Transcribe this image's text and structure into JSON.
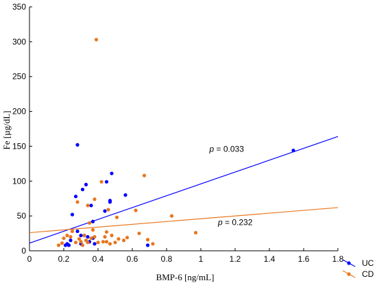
{
  "chart_data": {
    "type": "scatter",
    "title": "",
    "xlabel": "BMP-6 [ng/mL]",
    "ylabel": "Fe [µg/dL]",
    "xlim": [
      0,
      1.8
    ],
    "ylim": [
      0,
      350
    ],
    "x_ticks": [
      "0",
      "0.2",
      "0.4",
      "0.6",
      "0.8",
      "1",
      "1.2",
      "1.4",
      "1.6",
      "1.8"
    ],
    "y_ticks": [
      "0",
      "50",
      "100",
      "150",
      "200",
      "250",
      "300",
      "350"
    ],
    "grid": false,
    "legend_position": "bottom-right",
    "series": [
      {
        "name": "UC",
        "color": "#0000ff",
        "points": [
          [
            0.21,
            8
          ],
          [
            0.22,
            10
          ],
          [
            0.23,
            8
          ],
          [
            0.24,
            15
          ],
          [
            0.25,
            52
          ],
          [
            0.27,
            78
          ],
          [
            0.28,
            28
          ],
          [
            0.28,
            152
          ],
          [
            0.3,
            22
          ],
          [
            0.3,
            10
          ],
          [
            0.31,
            88
          ],
          [
            0.32,
            22
          ],
          [
            0.33,
            95
          ],
          [
            0.34,
            20
          ],
          [
            0.35,
            13
          ],
          [
            0.36,
            65
          ],
          [
            0.37,
            42
          ],
          [
            0.37,
            18
          ],
          [
            0.38,
            10
          ],
          [
            0.44,
            57
          ],
          [
            0.45,
            99
          ],
          [
            0.47,
            72
          ],
          [
            0.47,
            70
          ],
          [
            0.48,
            111
          ],
          [
            0.56,
            80
          ],
          [
            0.69,
            8
          ],
          [
            1.54,
            144
          ]
        ],
        "trend": {
          "intercept": 11,
          "slope": 85
        }
      },
      {
        "name": "CD",
        "color": "#e8761e",
        "points": [
          [
            0.17,
            8
          ],
          [
            0.19,
            11
          ],
          [
            0.2,
            18
          ],
          [
            0.22,
            22
          ],
          [
            0.24,
            20
          ],
          [
            0.25,
            28
          ],
          [
            0.27,
            12
          ],
          [
            0.28,
            70
          ],
          [
            0.29,
            17
          ],
          [
            0.3,
            13
          ],
          [
            0.31,
            8
          ],
          [
            0.32,
            22
          ],
          [
            0.33,
            15
          ],
          [
            0.34,
            65
          ],
          [
            0.34,
            12
          ],
          [
            0.35,
            40
          ],
          [
            0.36,
            18
          ],
          [
            0.37,
            30
          ],
          [
            0.38,
            20
          ],
          [
            0.38,
            74
          ],
          [
            0.39,
            303
          ],
          [
            0.4,
            12
          ],
          [
            0.42,
            99
          ],
          [
            0.43,
            13
          ],
          [
            0.44,
            20
          ],
          [
            0.45,
            13
          ],
          [
            0.45,
            27
          ],
          [
            0.46,
            59
          ],
          [
            0.47,
            10
          ],
          [
            0.48,
            22
          ],
          [
            0.5,
            12
          ],
          [
            0.51,
            48
          ],
          [
            0.52,
            17
          ],
          [
            0.55,
            15
          ],
          [
            0.57,
            19
          ],
          [
            0.62,
            58
          ],
          [
            0.64,
            25
          ],
          [
            0.67,
            108
          ],
          [
            0.69,
            16
          ],
          [
            0.72,
            10
          ],
          [
            0.83,
            50
          ],
          [
            0.97,
            26
          ]
        ],
        "trend": {
          "intercept": 26,
          "slope": 20
        }
      }
    ],
    "annotations": [
      {
        "prefix": "p",
        "text": " = 0.033",
        "x": 1.05,
        "y": 142
      },
      {
        "prefix": "p",
        "text": " = 0.232",
        "x": 1.1,
        "y": 37
      }
    ]
  }
}
